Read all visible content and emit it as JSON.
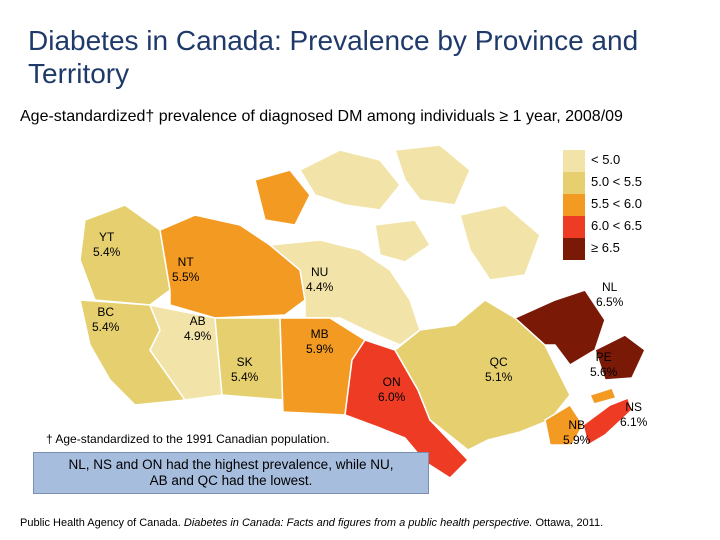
{
  "title": "Diabetes in Canada: Prevalence by Province and Territory",
  "subtitle": "Age-standardized† prevalence of diagnosed DM among individuals ≥ 1 year, 2008/09",
  "legend": [
    {
      "label": "< 5.0",
      "color": "#f2e3a9"
    },
    {
      "label": "5.0 < 5.5",
      "color": "#e5cf6e"
    },
    {
      "label": "5.5 < 6.0",
      "color": "#f39a23"
    },
    {
      "label": "6.0 < 6.5",
      "color": "#ee3b24"
    },
    {
      "label": "≥ 6.5",
      "color": "#7a1a06"
    }
  ],
  "regions": [
    {
      "code": "YT",
      "value": "5.4%",
      "color": "#e5cf6e"
    },
    {
      "code": "NT",
      "value": "5.5%",
      "color": "#f39a23"
    },
    {
      "code": "NU",
      "value": "4.4%",
      "color": "#f2e3a9"
    },
    {
      "code": "BC",
      "value": "5.4%",
      "color": "#e5cf6e"
    },
    {
      "code": "AB",
      "value": "4.9%",
      "color": "#f2e3a9"
    },
    {
      "code": "SK",
      "value": "5.4%",
      "color": "#e5cf6e"
    },
    {
      "code": "MB",
      "value": "5.9%",
      "color": "#f39a23"
    },
    {
      "code": "ON",
      "value": "6.0%",
      "color": "#ee3b24"
    },
    {
      "code": "QC",
      "value": "5.1%",
      "color": "#e5cf6e"
    },
    {
      "code": "NL",
      "value": "6.5%",
      "color": "#7a1a06"
    },
    {
      "code": "PE",
      "value": "5.6%",
      "color": "#f39a23"
    },
    {
      "code": "NB",
      "value": "5.9%",
      "color": "#f39a23"
    },
    {
      "code": "NS",
      "value": "6.1%",
      "color": "#ee3b24"
    }
  ],
  "footnote": "† Age-standardized to the 1991 Canadian population.",
  "callout": "NL, NS and ON had the highest prevalence, while NU, AB and QC had the lowest.",
  "source": {
    "prefix": "Public Health Agency of Canada. ",
    "italic": "Diabetes in Canada: Facts and figures from a public health perspective.",
    "suffix": " Ottawa, 2011."
  }
}
